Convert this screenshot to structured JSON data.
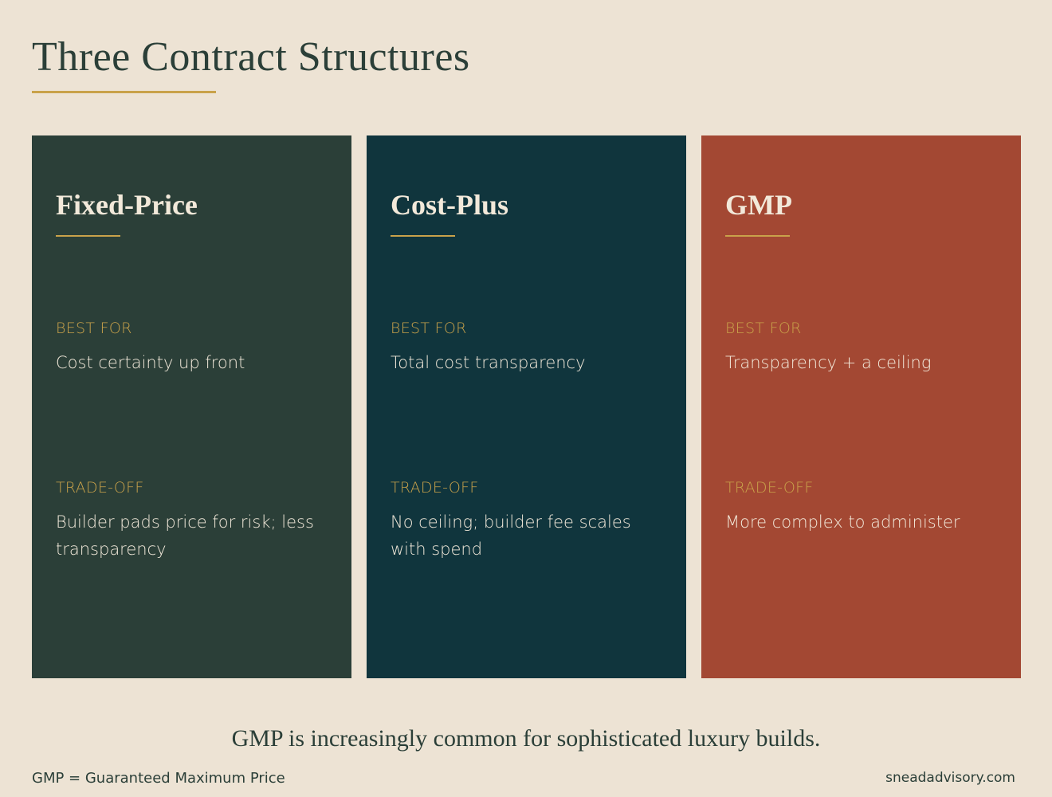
{
  "title": "Three Contract Structures",
  "colors": {
    "background": "#ede3d4",
    "accent": "#c9a24a",
    "text": "#2b3f38"
  },
  "cards": [
    {
      "title": "Fixed-Price",
      "color": "#2b3f38",
      "best_for_label": "BEST FOR",
      "best_for": "Cost certainty up front",
      "tradeoff_label": "TRADE-OFF",
      "tradeoff": "Builder pads price for risk; less transparency"
    },
    {
      "title": "Cost-Plus",
      "color": "#10353d",
      "best_for_label": "BEST FOR",
      "best_for": "Total cost transparency",
      "tradeoff_label": "TRADE-OFF",
      "tradeoff": "No ceiling; builder fee scales with spend"
    },
    {
      "title": "GMP",
      "color": "#a34833",
      "best_for_label": "BEST FOR",
      "best_for": "Transparency + a ceiling",
      "tradeoff_label": "TRADE-OFF",
      "tradeoff": "More complex to administer"
    }
  ],
  "tagline": "GMP is increasingly common for sophisticated luxury builds.",
  "footnote": "GMP = Guaranteed Maximum Price",
  "website": "sneadadvisory.com"
}
